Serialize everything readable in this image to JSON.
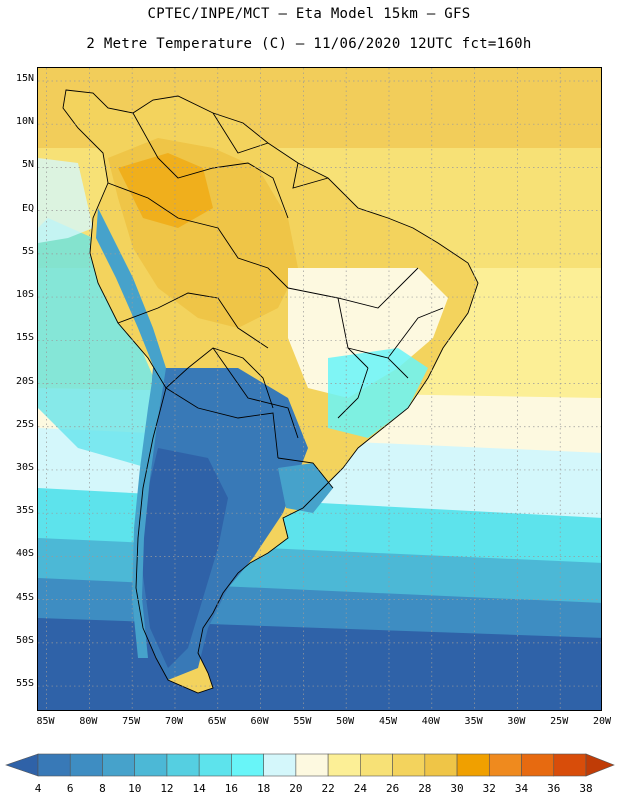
{
  "header": {
    "line1": "CPTEC/INPE/MCT –  Eta Model 15km – GFS",
    "line2": "2 Metre Temperature (C) – 11/06/2020 12UTC fct=160h"
  },
  "map": {
    "region": "South America",
    "lat_labels": [
      "15N",
      "10N",
      "5N",
      "EQ",
      "5S",
      "10S",
      "15S",
      "20S",
      "25S",
      "30S",
      "35S",
      "40S",
      "45S",
      "50S",
      "55S"
    ],
    "lat_values": [
      15,
      10,
      5,
      0,
      -5,
      -10,
      -15,
      -20,
      -25,
      -30,
      -35,
      -40,
      -45,
      -50,
      -55
    ],
    "lon_labels": [
      "85W",
      "80W",
      "75W",
      "70W",
      "65W",
      "60W",
      "55W",
      "50W",
      "45W",
      "40W",
      "35W",
      "30W",
      "25W",
      "20W"
    ],
    "lon_values": [
      -85,
      -80,
      -75,
      -70,
      -65,
      -60,
      -55,
      -50,
      -45,
      -40,
      -35,
      -30,
      -25,
      -20
    ],
    "lat_range": [
      -58,
      16.5
    ],
    "lon_range": [
      -86,
      -20
    ]
  },
  "colorbar": {
    "labels": [
      "4",
      "6",
      "8",
      "10",
      "12",
      "14",
      "16",
      "18",
      "20",
      "22",
      "24",
      "26",
      "28",
      "30",
      "32",
      "34",
      "36",
      "38"
    ],
    "colors": [
      "#2f62a8",
      "#3879b7",
      "#3e8dc2",
      "#46a2cb",
      "#4cb8d6",
      "#55cfe1",
      "#5de3ec",
      "#68f5f8",
      "#d4f7fb",
      "#fdf9e0",
      "#fcef96",
      "#f7e176",
      "#f3d35d",
      "#efc547",
      "#f0a000",
      "#ef8a1e",
      "#e76a10",
      "#d84d0a",
      "#c03c06"
    ]
  },
  "palette": {
    "ocean_warm": "#f2cd5a",
    "ocean_mid": "#f7e176",
    "ocean_light": "#fcef96",
    "ocean_pale": "#fdf9e0",
    "ocean_cyan": "#d4f7fb",
    "ocean_cool": "#5de3ec",
    "ocean_cold": "#4cb8d6",
    "ocean_colder": "#3e8dc2",
    "ocean_coldest": "#2f62a8",
    "land_hot": "#efc547",
    "land_warm": "#f3d35d",
    "land_pale": "#fdf9e0",
    "land_cool": "#68f5f8",
    "land_cold": "#3879b7",
    "land_colder": "#2f62a8",
    "andes": "#46a2cb",
    "outline": "#000000",
    "grid": "#9a9a9a"
  }
}
